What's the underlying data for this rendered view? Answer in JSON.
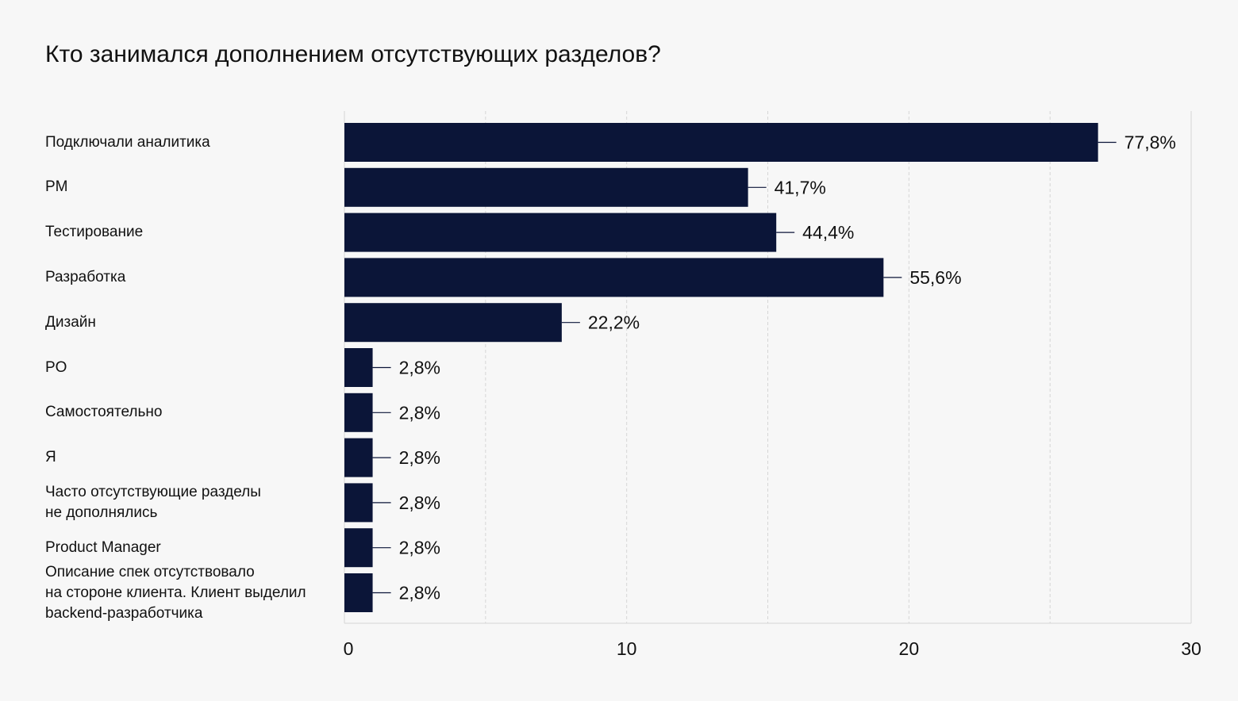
{
  "chart_data": {
    "type": "bar",
    "orientation": "horizontal",
    "title": "Кто занимался дополнением отсутствующих разделов?",
    "xlabel": "",
    "ylabel": "",
    "xlim": [
      0,
      30
    ],
    "x_ticks": [
      "0",
      "10",
      "20",
      "30"
    ],
    "grid": "vertical dashed",
    "categories": [
      "Подключали аналитика",
      "PM",
      "Тестирование",
      "Разработка",
      " Дизайн",
      "PO",
      "Самостоятельно",
      "Я",
      "Часто отсутствующие разделы\nне дополнялись",
      "Product Manager",
      "Описание спек отсутствовало\nна стороне клиента. Клиент выделил\nbackend-разработчика"
    ],
    "values": [
      26.7,
      14.3,
      15.3,
      19.1,
      7.7,
      1,
      1,
      1,
      1,
      1,
      1
    ],
    "data_labels": [
      "77,8%",
      "41,7%",
      "44,4%",
      "55,6%",
      "22,2%",
      "2,8%",
      "2,8%",
      "2,8%",
      "2,8%",
      "2,8%",
      "2,8%"
    ],
    "colors": {
      "bar": "#0b1538",
      "background": "#f7f7f7",
      "grid": "#d6d6d6",
      "text": "#111111"
    }
  }
}
